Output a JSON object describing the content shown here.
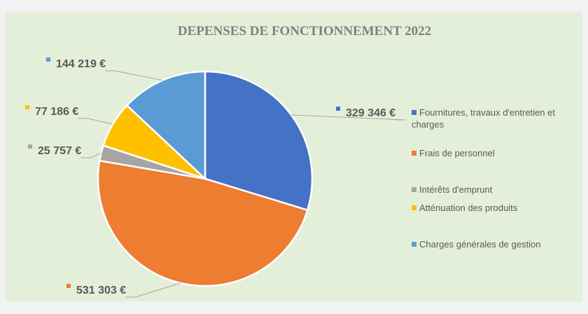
{
  "chart_data": {
    "type": "pie",
    "title": "DEPENSES DE FONCTIONNEMENT 2022",
    "categories": [
      "Fournitures, travaux d'entretien et charges",
      "Frais de personnel",
      "Intérêts d'emprunt",
      "Atténuation des produits",
      "Charges générales de gestion"
    ],
    "values": [
      329346,
      531303,
      25757,
      77186,
      144219
    ],
    "value_labels": [
      "329 346 €",
      "531 303 €",
      "25 757 €",
      "77 186 €",
      "144 219 €"
    ],
    "colors": [
      "#4472c4",
      "#ed7d31",
      "#a5a5a5",
      "#ffc000",
      "#5b9bd5"
    ],
    "legend": "right"
  }
}
